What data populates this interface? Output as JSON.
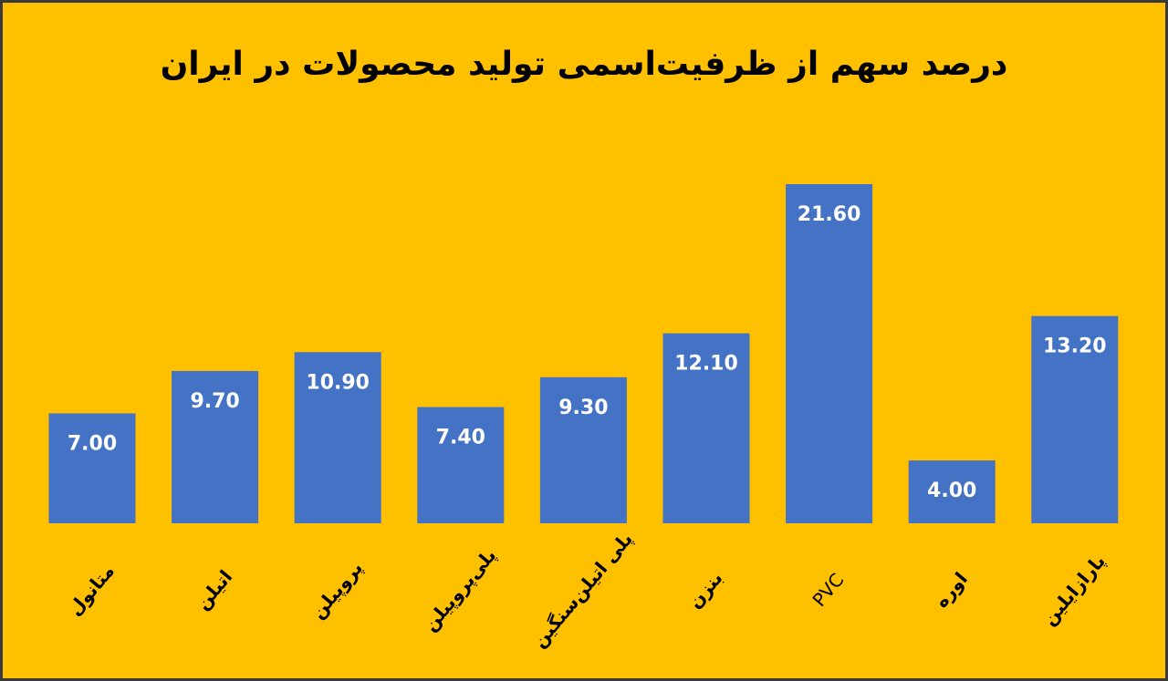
{
  "chart_data": {
    "type": "bar",
    "title": "درصد سهم از ظرفیت‌اسمی تولید محصولات در ایران",
    "categories": [
      "متانول",
      "اتیلن",
      "پروپیلن",
      "پلی‌پروپیلن",
      "پلی اتیلن‌سنگین",
      "بنزن",
      "PVC",
      "اوره",
      "پارازایلین"
    ],
    "values": [
      7,
      9.7,
      10.9,
      7.4,
      9.3,
      12.1,
      21.6,
      4,
      13.2
    ],
    "value_labels": [
      "7.00",
      "9.70",
      "10.90",
      "7.40",
      "9.30",
      "12.10",
      "21.60",
      "4.00",
      "13.20"
    ],
    "color": "#4472c4"
  }
}
